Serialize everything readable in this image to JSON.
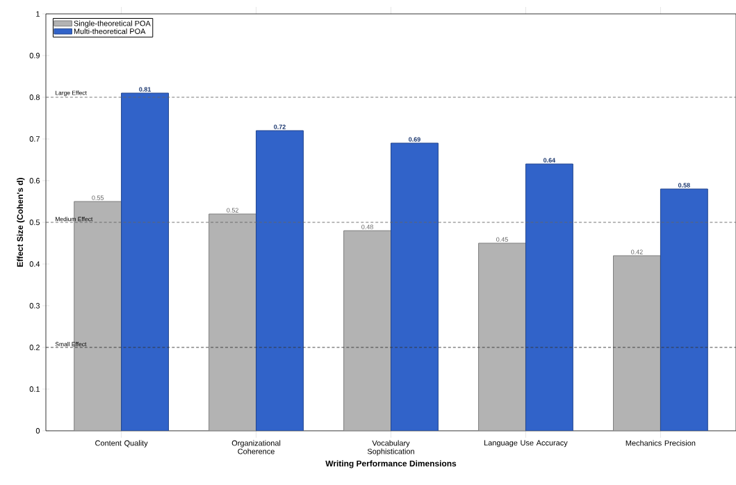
{
  "chart_data": {
    "type": "bar",
    "xlabel": "Writing Performance Dimensions",
    "ylabel": "Effect Size (Cohen's d)",
    "categories": [
      "Content Quality",
      "Organizational Coherence",
      "Vocabulary Sophistication",
      "Language Use Accuracy",
      "Mechanics Precision"
    ],
    "series": [
      {
        "name": "Single-theoretical POA",
        "color": "#b3b3b3",
        "values": [
          0.55,
          0.52,
          0.48,
          0.45,
          0.42
        ]
      },
      {
        "name": "Multi-theoretical POA",
        "color": "#3163c9",
        "values": [
          0.81,
          0.72,
          0.69,
          0.64,
          0.58
        ]
      }
    ],
    "ylim": [
      0,
      1
    ],
    "yticks": [
      0,
      0.1,
      0.2,
      0.3,
      0.4,
      0.5,
      0.6,
      0.7,
      0.8,
      0.9,
      1
    ],
    "ref_lines": [
      {
        "axis": "y",
        "value": 0.8,
        "label": "Large Effect",
        "color": "#666666",
        "line_style": "dashed"
      },
      {
        "axis": "y",
        "value": 0.5,
        "label": "Medium Effect",
        "color": "#666666",
        "line_style": "dashed"
      },
      {
        "axis": "y",
        "value": 0.2,
        "label": "Small Effect",
        "color": "#333333",
        "line_style": "dashed"
      }
    ],
    "data_labels": true,
    "legend": "top left",
    "grid": false
  }
}
